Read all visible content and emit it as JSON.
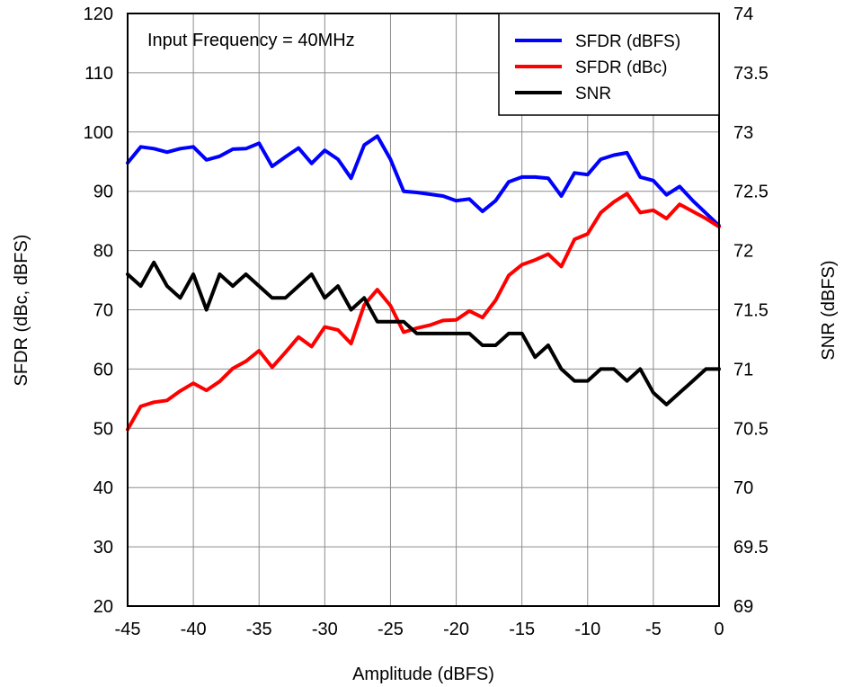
{
  "chart_data": {
    "type": "line",
    "annotation": "Input Frequency = 40MHz",
    "xlabel": "Amplitude (dBFS)",
    "ylabel_left": "SFDR (dBc, dBFS)",
    "ylabel_right": "SNR (dBFS)",
    "xlim": [
      -45,
      0
    ],
    "ylim_left": [
      20,
      120
    ],
    "ylim_right": [
      69,
      74
    ],
    "x_ticks": [
      "-45",
      "-40",
      "-35",
      "-30",
      "-25",
      "-20",
      "-15",
      "-10",
      "-5",
      "0"
    ],
    "y_ticks_left": [
      "20",
      "30",
      "40",
      "50",
      "60",
      "70",
      "80",
      "90",
      "100",
      "110",
      "120"
    ],
    "y_ticks_right": [
      "69",
      "69.5",
      "70",
      "70.5",
      "71",
      "71.5",
      "72",
      "72.5",
      "73",
      "73.5",
      "74"
    ],
    "grid": true,
    "legend_position": "top-right",
    "x": [
      -45,
      -44,
      -43,
      -42,
      -41,
      -40,
      -39,
      -38,
      -37,
      -36,
      -35,
      -34,
      -33,
      -32,
      -31,
      -30,
      -29,
      -28,
      -27,
      -26,
      -25,
      -24,
      -23,
      -22,
      -21,
      -20,
      -19,
      -18,
      -17,
      -16,
      -15,
      -14,
      -13,
      -12,
      -11,
      -10,
      -9,
      -8,
      -7,
      -6,
      -5,
      -4,
      -3,
      -2,
      -1,
      0
    ],
    "series": [
      {
        "name": "SFDR (dBFS)",
        "axis": "left",
        "color": "#0000ff",
        "values": [
          94.8,
          97.5,
          97.2,
          96.6,
          97.2,
          97.5,
          95.3,
          95.9,
          97.1,
          97.2,
          98.1,
          94.2,
          95.8,
          97.3,
          94.7,
          96.9,
          95.4,
          92.2,
          97.8,
          99.3,
          95.4,
          90.0,
          89.8,
          89.5,
          89.2,
          88.4,
          88.7,
          86.6,
          88.4,
          91.6,
          92.4,
          92.4,
          92.2,
          89.2,
          93.1,
          92.8,
          95.4,
          96.1,
          96.5,
          92.4,
          91.8,
          89.4,
          90.8,
          88.4,
          86.3,
          84.2
        ]
      },
      {
        "name": "SFDR (dBc)",
        "axis": "left",
        "color": "#ff0000",
        "values": [
          49.8,
          53.7,
          54.4,
          54.7,
          56.3,
          57.6,
          56.4,
          57.9,
          60.1,
          61.3,
          63.1,
          60.3,
          62.8,
          65.4,
          63.8,
          67.1,
          66.6,
          64.3,
          70.8,
          73.4,
          70.7,
          66.2,
          66.9,
          67.4,
          68.2,
          68.3,
          69.8,
          68.7,
          71.6,
          75.8,
          77.6,
          78.4,
          79.4,
          77.3,
          81.9,
          82.8,
          86.4,
          88.2,
          89.6,
          86.4,
          86.8,
          85.4,
          87.8,
          86.6,
          85.4,
          84.0
        ]
      },
      {
        "name": "SNR",
        "axis": "right",
        "color": "#000000",
        "values": [
          71.8,
          71.7,
          71.9,
          71.7,
          71.6,
          71.8,
          71.5,
          71.8,
          71.7,
          71.8,
          71.7,
          71.6,
          71.6,
          71.7,
          71.8,
          71.6,
          71.7,
          71.5,
          71.6,
          71.4,
          71.4,
          71.4,
          71.3,
          71.3,
          71.3,
          71.3,
          71.3,
          71.2,
          71.2,
          71.3,
          71.3,
          71.1,
          71.2,
          71.0,
          70.9,
          70.9,
          71.0,
          71.0,
          70.9,
          71.0,
          70.8,
          70.7,
          70.8,
          70.9,
          71.0,
          71.0
        ]
      }
    ]
  }
}
